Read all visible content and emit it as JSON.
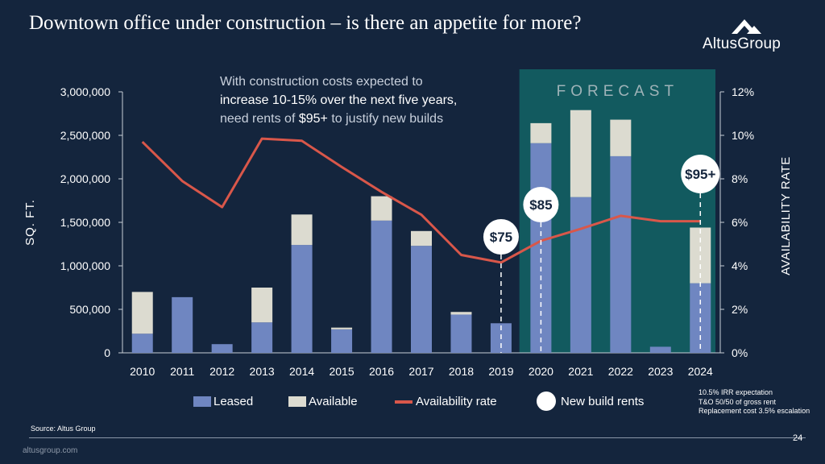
{
  "slide": {
    "title": "Downtown office under construction – is there an appetite for more?",
    "logo_text": "AltusGroup",
    "callout_line1": "With construction costs expected to",
    "callout_line2": "increase 10-15% over the next five years,",
    "callout_line3_pre": "need rents of ",
    "callout_line3_value": "$95+",
    "callout_line3_post": " to justify new builds",
    "assumptions": [
      "10.5% IRR expectation",
      "T&O 50/50 of gross rent",
      "Replacement cost 3.5% escalation"
    ],
    "source": "Source:  Altus Group",
    "page_number": "24",
    "site": "altusgroup.com"
  },
  "legend": {
    "leased": "Leased",
    "available": "Available",
    "availability_rate": "Availability rate",
    "new_build_rents": "New build rents"
  },
  "colors": {
    "background": "#14253d",
    "leased": "#6f86c1",
    "available": "#dcdbd0",
    "line": "#d9574a",
    "forecast": "#125a5f",
    "forecast_label": "#9fb3b8"
  },
  "chart_data": {
    "type": "bar",
    "stacked": true,
    "categories": [
      "2010",
      "2011",
      "2012",
      "2013",
      "2014",
      "2015",
      "2016",
      "2017",
      "2018",
      "2019",
      "2020",
      "2021",
      "2022",
      "2023",
      "2024"
    ],
    "series": [
      {
        "name": "Leased",
        "values": [
          220000,
          640000,
          100000,
          350000,
          1240000,
          270000,
          1520000,
          1230000,
          440000,
          340000,
          2410000,
          1790000,
          2260000,
          70000,
          800000
        ]
      },
      {
        "name": "Available",
        "values": [
          480000,
          0,
          0,
          400000,
          350000,
          20000,
          280000,
          170000,
          30000,
          0,
          230000,
          1000000,
          420000,
          0,
          640000
        ]
      }
    ],
    "line_series": {
      "name": "Availability rate",
      "axis": "right",
      "values": [
        9.7,
        7.9,
        6.7,
        9.85,
        9.75,
        8.55,
        7.4,
        6.35,
        4.5,
        4.15,
        5.15,
        5.7,
        6.3,
        6.05,
        6.05
      ]
    },
    "markers": [
      {
        "category": "2019",
        "label": "$75"
      },
      {
        "category": "2020",
        "label": "$85"
      },
      {
        "category": "2024",
        "label": "$95+"
      }
    ],
    "forecast": {
      "label": "FORECAST",
      "from": "2020",
      "to": "2024"
    },
    "ylabel": "SQ. FT.",
    "y2label": "AVAILABILITY RATE",
    "ylim": [
      0,
      3000000
    ],
    "y2lim": [
      0,
      12
    ],
    "yticks": [
      "0",
      "500,000",
      "1,000,000",
      "1,500,000",
      "2,000,000",
      "2,500,000",
      "3,000,000"
    ],
    "y2ticks": [
      "0%",
      "2%",
      "4%",
      "6%",
      "8%",
      "10%",
      "12%"
    ]
  }
}
